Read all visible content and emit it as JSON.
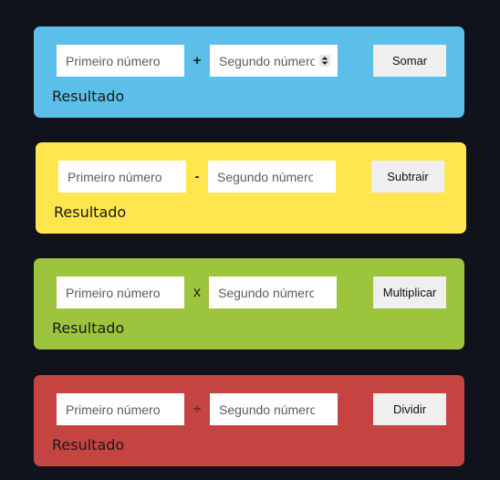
{
  "cards": [
    {
      "color": "#5bbfea",
      "first_placeholder": "Primeiro número",
      "operator": "+",
      "second_placeholder": "Segundo número",
      "button_label": "Somar",
      "result_label": "Resultado"
    },
    {
      "color": "#ffe54e",
      "first_placeholder": "Primeiro número",
      "operator": "-",
      "second_placeholder": "Segundo número",
      "button_label": "Subtrair",
      "result_label": "Resultado"
    },
    {
      "color": "#9cc43c",
      "first_placeholder": "Primeiro número",
      "operator": "x",
      "second_placeholder": "Segundo número",
      "button_label": "Multiplicar",
      "result_label": "Resultado"
    },
    {
      "color": "#c54341",
      "first_placeholder": "Primeiro número",
      "operator": "÷",
      "second_placeholder": "Segundo número",
      "button_label": "Dividir",
      "result_label": "Resultado"
    }
  ],
  "icons": {
    "number_spinner": "spinner-arrows-icon"
  }
}
